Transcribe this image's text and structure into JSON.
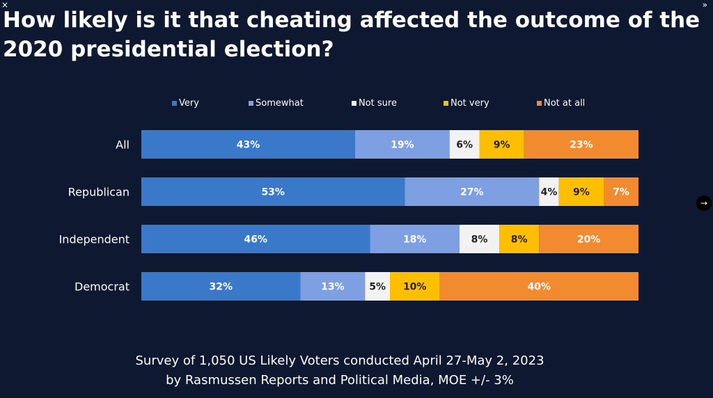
{
  "title": "How likely is it that cheating affected the outcome of the 2020 presidential election?",
  "ui": {
    "close_icon": "×",
    "collapse_icon": "»",
    "next_icon": "→"
  },
  "footer": {
    "line1": "Survey of 1,050 US Likely Voters conducted April 27-May 2, 2023",
    "line2": "by Rasmussen Reports and Political Media, MOE +/- 3%"
  },
  "chart_data": {
    "type": "bar",
    "orientation": "horizontal",
    "stacked": true,
    "categories": [
      "All",
      "Republican",
      "Independent",
      "Democrat"
    ],
    "series": [
      {
        "name": "Very",
        "color": "#3a78c9",
        "label_color": "#ffffff",
        "values": [
          43,
          53,
          46,
          32
        ]
      },
      {
        "name": "Somewhat",
        "color": "#7f9fe3",
        "label_color": "#ffffff",
        "values": [
          19,
          27,
          18,
          13
        ]
      },
      {
        "name": "Not sure",
        "color": "#f2f2f2",
        "label_color": "#222222",
        "values": [
          6,
          4,
          8,
          5
        ]
      },
      {
        "name": "Not very",
        "color": "#ffbf00",
        "label_color": "#222222",
        "values": [
          9,
          9,
          8,
          10
        ]
      },
      {
        "name": "Not at all",
        "color": "#f28a30",
        "label_color": "#ffffff",
        "values": [
          23,
          7,
          20,
          40
        ]
      }
    ],
    "value_suffix": "%",
    "legend_position": "top",
    "grid": false
  }
}
